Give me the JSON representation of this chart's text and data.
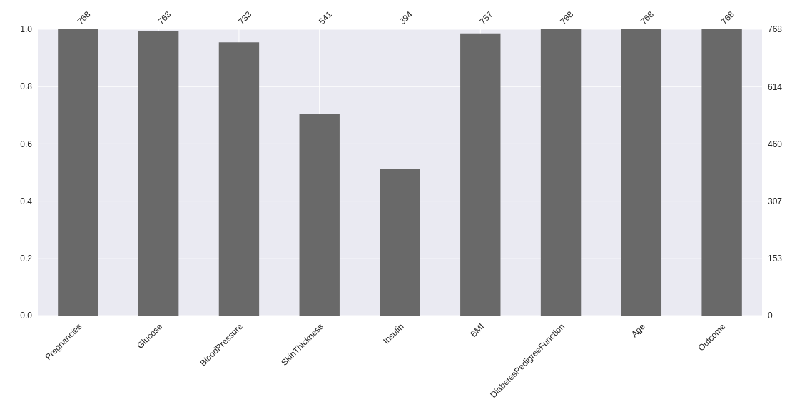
{
  "chart_data": {
    "type": "bar",
    "categories": [
      "Pregnancies",
      "Glucose",
      "BloodPressure",
      "SkinThickness",
      "Insulin",
      "BMI",
      "DiabetesPedigreeFunction",
      "Age",
      "Outcome"
    ],
    "series": [
      {
        "color": "#696969",
        "axis": "y2",
        "values": [
          768,
          763,
          733,
          541,
          394,
          757,
          768,
          768,
          768
        ],
        "value_labels": [
          "768",
          "763",
          "733",
          "541",
          "394",
          "757",
          "768",
          "768",
          "768"
        ]
      }
    ],
    "ylim": [
      0,
      1
    ],
    "yticks": [
      {
        "value": 0,
        "label": "0.0"
      },
      {
        "value": 0.2,
        "label": "0.2"
      },
      {
        "value": 0.4,
        "label": "0.4"
      },
      {
        "value": 0.6,
        "label": "0.6"
      },
      {
        "value": 0.8,
        "label": "0.8"
      },
      {
        "value": 1,
        "label": "1.0"
      }
    ],
    "y2lim": [
      0,
      768
    ],
    "y2ticks": [
      0,
      153,
      307,
      460,
      614,
      768
    ],
    "grid": true
  }
}
